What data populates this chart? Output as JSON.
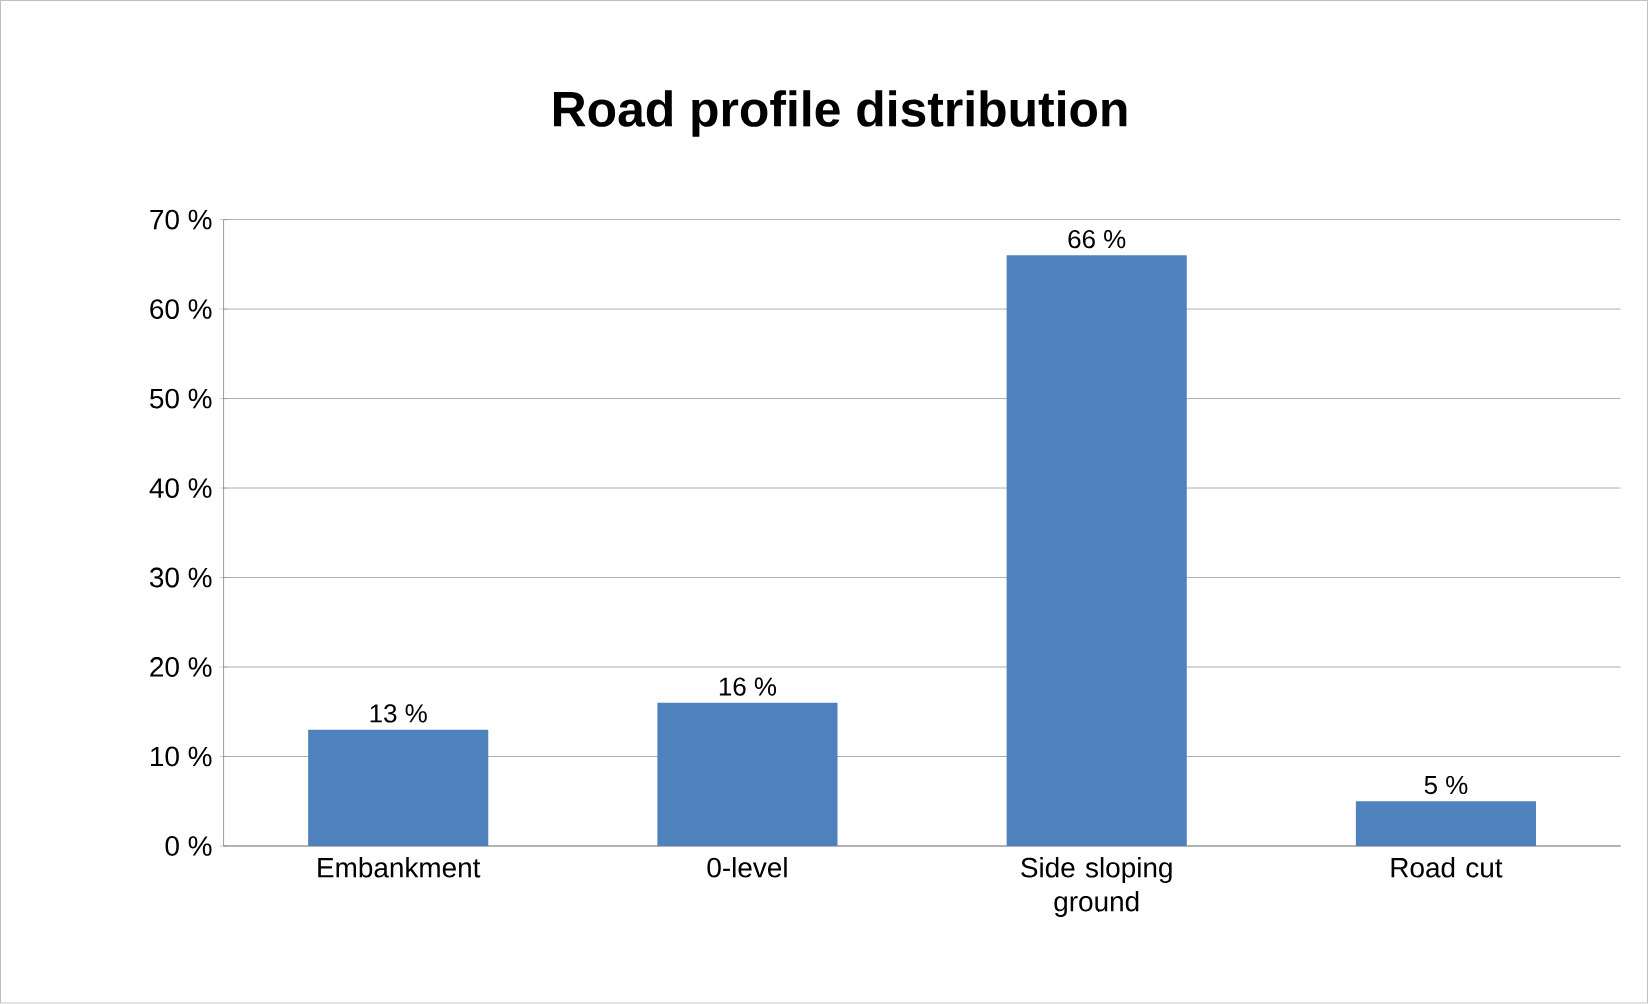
{
  "chart_data": {
    "type": "bar",
    "title": "Road profile distribution",
    "categories": [
      "Embankment",
      "0-level",
      "Side sloping ground",
      "Road cut"
    ],
    "values": [
      13,
      16,
      66,
      5
    ],
    "value_labels": [
      "13 %",
      "16 %",
      "66 %",
      "5 %"
    ],
    "color": "#4f81bd",
    "ylim": [
      0,
      70
    ],
    "yticks": [
      {
        "value": 0,
        "label": "0 %"
      },
      {
        "value": 10,
        "label": "10 %"
      },
      {
        "value": 20,
        "label": "20 %"
      },
      {
        "value": 30,
        "label": "30 %"
      },
      {
        "value": 40,
        "label": "40 %"
      },
      {
        "value": 50,
        "label": "50 %"
      },
      {
        "value": 60,
        "label": "60 %"
      },
      {
        "value": 70,
        "label": "70 %"
      }
    ],
    "grid": "y"
  }
}
